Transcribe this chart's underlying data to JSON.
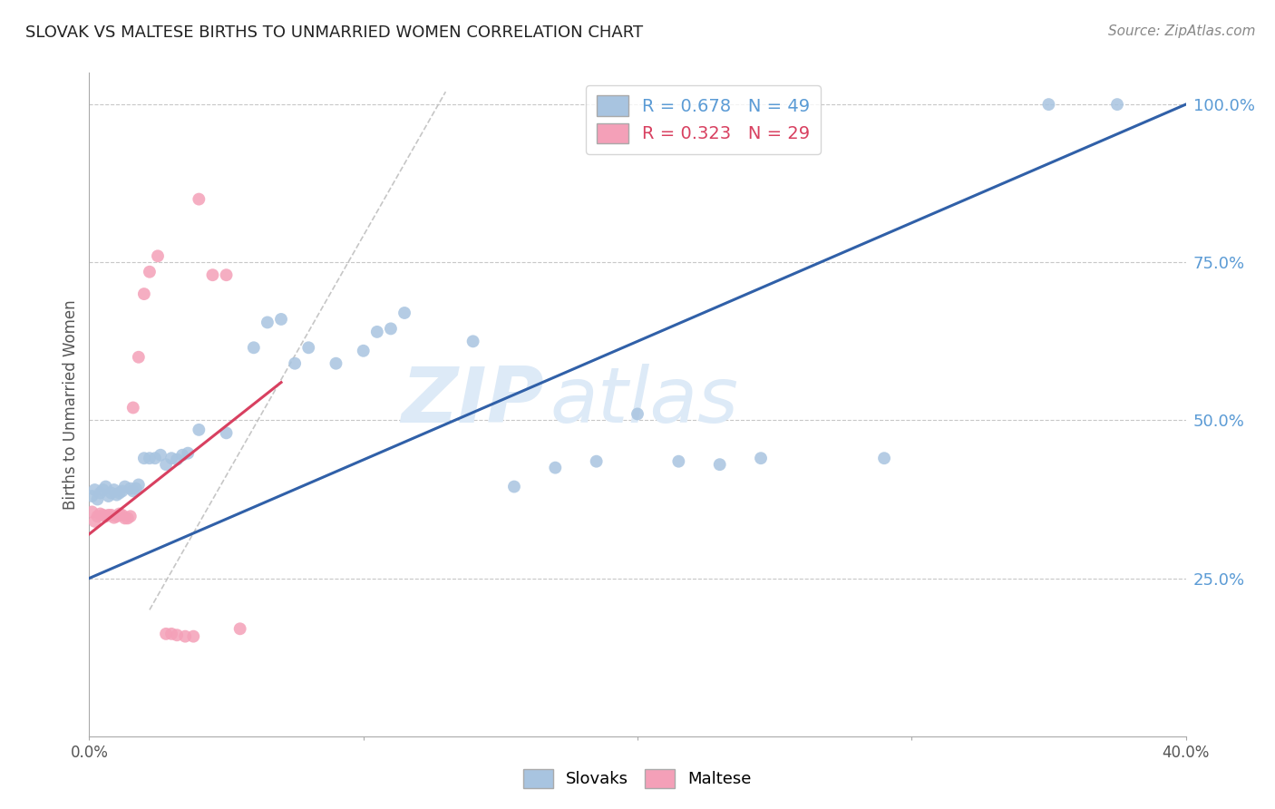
{
  "title": "SLOVAK VS MALTESE BIRTHS TO UNMARRIED WOMEN CORRELATION CHART",
  "source": "Source: ZipAtlas.com",
  "ylabel": "Births to Unmarried Women",
  "x_min": 0.0,
  "x_max": 0.4,
  "y_min": 0.0,
  "y_max": 1.05,
  "x_ticks": [
    0.0,
    0.1,
    0.2,
    0.3,
    0.4
  ],
  "x_tick_labels": [
    "0.0%",
    "",
    "",
    "",
    "40.0%"
  ],
  "y_ticks": [
    0.25,
    0.5,
    0.75,
    1.0
  ],
  "y_tick_labels": [
    "25.0%",
    "50.0%",
    "75.0%",
    "100.0%"
  ],
  "grid_color": "#c8c8c8",
  "background_color": "#ffffff",
  "right_axis_color": "#5b9bd5",
  "watermark_zip": "ZIP",
  "watermark_atlas": "atlas",
  "watermark_color": "#ddeaf7",
  "legend_r1": "R = 0.678",
  "legend_n1": "N = 49",
  "legend_r2": "R = 0.323",
  "legend_n2": "N = 29",
  "legend_label1": "Slovaks",
  "legend_label2": "Maltese",
  "scatter_blue_color": "#a8c4e0",
  "scatter_pink_color": "#f4a0b8",
  "line_blue_color": "#3060a8",
  "line_pink_color": "#d84060",
  "line_gray_color": "#c0c0c0",
  "slovak_x": [
    0.001,
    0.002,
    0.003,
    0.004,
    0.005,
    0.006,
    0.007,
    0.008,
    0.009,
    0.01,
    0.011,
    0.012,
    0.013,
    0.015,
    0.016,
    0.017,
    0.018,
    0.02,
    0.022,
    0.024,
    0.026,
    0.028,
    0.03,
    0.032,
    0.034,
    0.036,
    0.04,
    0.05,
    0.06,
    0.065,
    0.07,
    0.075,
    0.08,
    0.09,
    0.1,
    0.105,
    0.11,
    0.115,
    0.14,
    0.155,
    0.17,
    0.185,
    0.2,
    0.215,
    0.23,
    0.245,
    0.29,
    0.35,
    0.375
  ],
  "slovak_y": [
    0.38,
    0.39,
    0.375,
    0.385,
    0.39,
    0.395,
    0.38,
    0.385,
    0.39,
    0.382,
    0.385,
    0.388,
    0.395,
    0.392,
    0.388,
    0.392,
    0.398,
    0.44,
    0.44,
    0.44,
    0.445,
    0.43,
    0.44,
    0.438,
    0.445,
    0.448,
    0.485,
    0.48,
    0.615,
    0.655,
    0.66,
    0.59,
    0.615,
    0.59,
    0.61,
    0.64,
    0.645,
    0.67,
    0.625,
    0.395,
    0.425,
    0.435,
    0.51,
    0.435,
    0.43,
    0.44,
    0.44,
    1.0,
    1.0
  ],
  "maltese_x": [
    0.001,
    0.002,
    0.003,
    0.004,
    0.005,
    0.006,
    0.007,
    0.008,
    0.009,
    0.01,
    0.011,
    0.012,
    0.013,
    0.014,
    0.015,
    0.016,
    0.018,
    0.02,
    0.022,
    0.025,
    0.028,
    0.03,
    0.032,
    0.035,
    0.038,
    0.04,
    0.045,
    0.05,
    0.055
  ],
  "maltese_y": [
    0.355,
    0.34,
    0.348,
    0.352,
    0.35,
    0.348,
    0.35,
    0.35,
    0.346,
    0.348,
    0.352,
    0.35,
    0.345,
    0.345,
    0.348,
    0.52,
    0.6,
    0.7,
    0.735,
    0.76,
    0.162,
    0.162,
    0.16,
    0.158,
    0.158,
    0.85,
    0.73,
    0.73,
    0.17
  ],
  "blue_line_x0": 0.0,
  "blue_line_y0": 0.25,
  "blue_line_x1": 0.4,
  "blue_line_y1": 1.0,
  "pink_line_x0": 0.0,
  "pink_line_y0": 0.32,
  "pink_line_x1": 0.07,
  "pink_line_y1": 0.56,
  "gray_line_x0": 0.022,
  "gray_line_y0": 0.2,
  "gray_line_x1": 0.13,
  "gray_line_y1": 1.02
}
